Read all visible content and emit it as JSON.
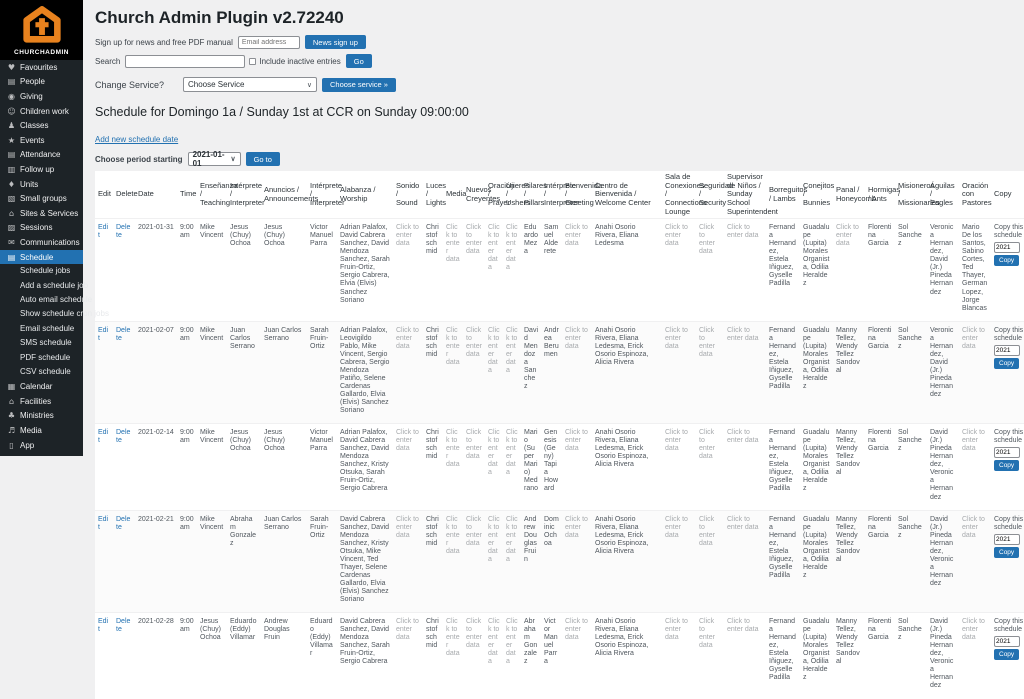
{
  "app": {
    "title": "Church Admin Plugin v2.72240"
  },
  "colors": {
    "accent": "#2271b1",
    "sidebar_bg": "#1d2327",
    "logo_orange": "#e8821e",
    "empty_text_grey": "#a7aaad"
  },
  "sidebar": {
    "brand": "CHURCHADMIN",
    "items": [
      {
        "label": "Favourites",
        "icon": "heart-icon",
        "glyph": "♥"
      },
      {
        "label": "People",
        "icon": "people-icon",
        "glyph": "▤"
      },
      {
        "label": "Giving",
        "icon": "giving-icon",
        "glyph": "◉"
      },
      {
        "label": "Children work",
        "icon": "children-icon",
        "glyph": "☺"
      },
      {
        "label": "Classes",
        "icon": "classes-icon",
        "glyph": "♟"
      },
      {
        "label": "Events",
        "icon": "events-icon",
        "glyph": "★"
      },
      {
        "label": "Attendance",
        "icon": "attendance-icon",
        "glyph": "▤"
      },
      {
        "label": "Follow up",
        "icon": "follow-up-icon",
        "glyph": "▥"
      },
      {
        "label": "Units",
        "icon": "units-icon",
        "glyph": "♦"
      },
      {
        "label": "Small groups",
        "icon": "small-groups-icon",
        "glyph": "▧"
      },
      {
        "label": "Sites & Services",
        "icon": "sites-icon",
        "glyph": "⌂"
      },
      {
        "label": "Sessions",
        "icon": "sessions-icon",
        "glyph": "▨"
      },
      {
        "label": "Communications",
        "icon": "communications-icon",
        "glyph": "✉"
      },
      {
        "label": "Schedule",
        "icon": "schedule-icon",
        "glyph": "▤",
        "active": true,
        "submenu": [
          "Schedule jobs",
          "Add a schedule job",
          "Auto email schedule",
          "Show schedule cron jobs",
          "Email schedule",
          "SMS schedule",
          "PDF schedule",
          "CSV schedule"
        ]
      },
      {
        "label": "Calendar",
        "icon": "calendar-icon",
        "glyph": "▦"
      },
      {
        "label": "Facilities",
        "icon": "facilities-icon",
        "glyph": "⌂"
      },
      {
        "label": "Ministries",
        "icon": "ministries-icon",
        "glyph": "♣"
      },
      {
        "label": "Media",
        "icon": "media-icon",
        "glyph": "♬"
      },
      {
        "label": "App",
        "icon": "app-icon",
        "glyph": "▯"
      }
    ]
  },
  "header": {
    "signup_label": "Sign up for news and free PDF manual",
    "email_placeholder": "Email address",
    "news_button": "News sign up",
    "search_label": "Search",
    "inactive_label": "Include inactive entries",
    "go_button": "Go",
    "change_service_label": "Change Service?",
    "service_select_value": "Choose Service",
    "choose_service_button": "Choose service »"
  },
  "schedule": {
    "heading": "Schedule for Domingo 1a / Sunday 1st at CCR on Sunday 09:00:00",
    "add_link": "Add new schedule date",
    "period_label": "Choose period starting",
    "period_value": "2021-01-01",
    "goto_button": "Go to"
  },
  "table": {
    "edit_label": "Edit",
    "delete_label": "Delete",
    "empty_text": "Click to enter data",
    "copy": {
      "label": "Copy this schedule",
      "input_value": "2021",
      "button": "Copy"
    },
    "columns": [
      "Edit",
      "Delete",
      "Date",
      "Time",
      "Enseñanza / Teaching",
      "Intérprete / Interpreter",
      "Anuncios / Announcements",
      "Intérprete / Interpreter",
      "Alabanza / Worship",
      "Sonido / Sound",
      "Luces / Lights",
      "Media",
      "Nuevos Creyentes",
      "Oración / Prayer",
      "Ujieres / Ushers",
      "Pilares / Pillars",
      "Intérprete / Interpreter",
      "Bienvenida / Greeting",
      "Centro de Bienvenida / Welcome Center",
      "Sala de Conexiones / Connections Lounge",
      "Seguridad / Security",
      "Supervisor de Niños / Sunday School Superintendent",
      "Borreguitos / Lambs",
      "Conejitos / Bunnies",
      "Panal / Honeycomb",
      "Hormigas / Ants",
      "Misioneros / Missionaries",
      "Águilas / Eagles",
      "Oración con Pastores",
      "Copy"
    ],
    "rows": [
      {
        "date": "2021-01-31",
        "time": "9:00 am",
        "cells": [
          "Mike Vincent",
          "Jesus (Chuy) Ochoa",
          "Jesus (Chuy) Ochoa",
          "Victor Manuel Parra",
          "Adrian Palafox, David Cabrera Sanchez, David Mendoza Sanchez, Sarah Fruin-Ortiz, Sergio Cabrera, Elvia (Elvis) Sanchez Soriano",
          null,
          "Christof schmid",
          null,
          null,
          null,
          null,
          "Eduardo Meza",
          "Samuel Alderete",
          null,
          "Anahi Osorio Rivera, Eliana Ledesma",
          null,
          null,
          null,
          "Fernanda Hernandez, Estela Iñiguez, Gyselle Padilla",
          "Guadalupe (Lupita) Morales Organista, Odilia Heraldez",
          null,
          "Florentina Garcia",
          "Sol Sanchez",
          "Veronica Hernandez, David (Jr.) Pineda Hernandez",
          "Mario De los Santos, Sabino Cortes, Ted Thayer, German Lopez, Jorge Blancas"
        ]
      },
      {
        "date": "2021-02-07",
        "time": "9:00 am",
        "cells": [
          "Mike Vincent",
          "Juan Carlos Serrano",
          "Juan Carlos Serrano",
          "Sarah Fruin-Ortiz",
          "Adrian Palafox, Leovigildo Pablo, Mike Vincent, Sergio Cabrera, Sergio Mendoza Patiño, Selene Cardenas Gallardo, Elvia (Elvis) Sanchez Soriano",
          null,
          "Christof schmid",
          null,
          null,
          null,
          null,
          "David Mendoza Sanchez",
          "Andrea Berumen",
          null,
          "Anahi Osorio Rivera, Eliana Ledesma, Erick Osorio Espinoza, Alicia Rivera",
          null,
          null,
          null,
          "Fernanda Hernandez, Estela Iñiguez, Gyselle Padilla",
          "Guadalupe (Lupita) Morales Organista, Odilia Heraldez",
          "Manny Tellez, Wendy Tellez Sandoval",
          "Florentina Garcia",
          "Sol Sanchez",
          "Veronica Hernandez, David (Jr.) Pineda Hernandez",
          null
        ]
      },
      {
        "date": "2021-02-14",
        "time": "9:00 am",
        "cells": [
          "Mike Vincent",
          "Jesus (Chuy) Ochoa",
          "Jesus (Chuy) Ochoa",
          "Victor Manuel Parra",
          "Adrian Palafox, David Cabrera Sanchez, David Mendoza Sanchez, Kristy Otsuka, Sarah Fruin-Ortiz, Sergio Cabrera",
          null,
          "Christof schmid",
          null,
          null,
          null,
          null,
          "Mario (Super Mario) Medrano",
          "Genesis (Geny) Tapia Howard",
          null,
          "Anahi Osorio Rivera, Eliana Ledesma, Erick Osorio Espinoza, Alicia Rivera",
          null,
          null,
          null,
          "Fernanda Hernandez, Estela Iñiguez, Gyselle Padilla",
          "Guadalupe (Lupita) Morales Organista, Odilia Heraldez",
          "Manny Tellez, Wendy Tellez Sandoval",
          "Florentina Garcia",
          "Sol Sanchez",
          "David (Jr.) Pineda Hernandez, Veronica Hernandez",
          null
        ]
      },
      {
        "date": "2021-02-21",
        "time": "9:00 am",
        "cells": [
          "Mike Vincent",
          "Abraham Gonzalez",
          "Juan Carlos Serrano",
          "Sarah Fruin-Ortiz",
          "David Cabrera Sanchez, David Mendoza Sanchez, Kristy Otsuka, Mike Vincent, Ted Thayer, Selene Cardenas Gallardo, Elvia (Elvis) Sanchez Soriano",
          null,
          "Christof schmid",
          null,
          null,
          null,
          null,
          "Andrew Douglas Fruin",
          "Dominic Ochoa",
          null,
          "Anahi Osorio Rivera, Eliana Ledesma, Erick Osorio Espinoza, Alicia Rivera",
          null,
          null,
          null,
          "Fernanda Hernandez, Estela Iñiguez, Gyselle Padilla",
          "Guadalupe (Lupita) Morales Organista, Odilia Heraldez",
          "Manny Tellez, Wendy Tellez Sandoval",
          "Florentina Garcia",
          "Sol Sanchez",
          "David (Jr.) Pineda Hernandez, Veronica Hernandez",
          null
        ]
      },
      {
        "date": "2021-02-28",
        "time": "9:00 am",
        "cells": [
          "Jesus (Chuy) Ochoa",
          "Eduardo (Eddy) Villamar",
          "Andrew Douglas Fruin",
          "Eduardo (Eddy) Villamar",
          "David Cabrera Sanchez, David Mendoza Sanchez, Sarah Fruin-Ortiz, Sergio Cabrera",
          null,
          "Christof schmid",
          null,
          null,
          null,
          null,
          "Abraham Gonzalez",
          "Victor Manuel Parra",
          null,
          "Anahi Osorio Rivera, Eliana Ledesma, Erick Osorio Espinoza, Alicia Rivera",
          null,
          null,
          null,
          "Fernanda Hernandez, Estela Iñiguez, Gyselle Padilla",
          "Guadalupe (Lupita) Morales Organista, Odilia Heraldez",
          "Manny Tellez, Wendy Tellez Sandoval",
          "Florentina Garcia",
          "Sol Sanchez",
          "David (Jr.) Pineda Hernandez, Veronica Hernandez",
          null
        ]
      }
    ]
  }
}
